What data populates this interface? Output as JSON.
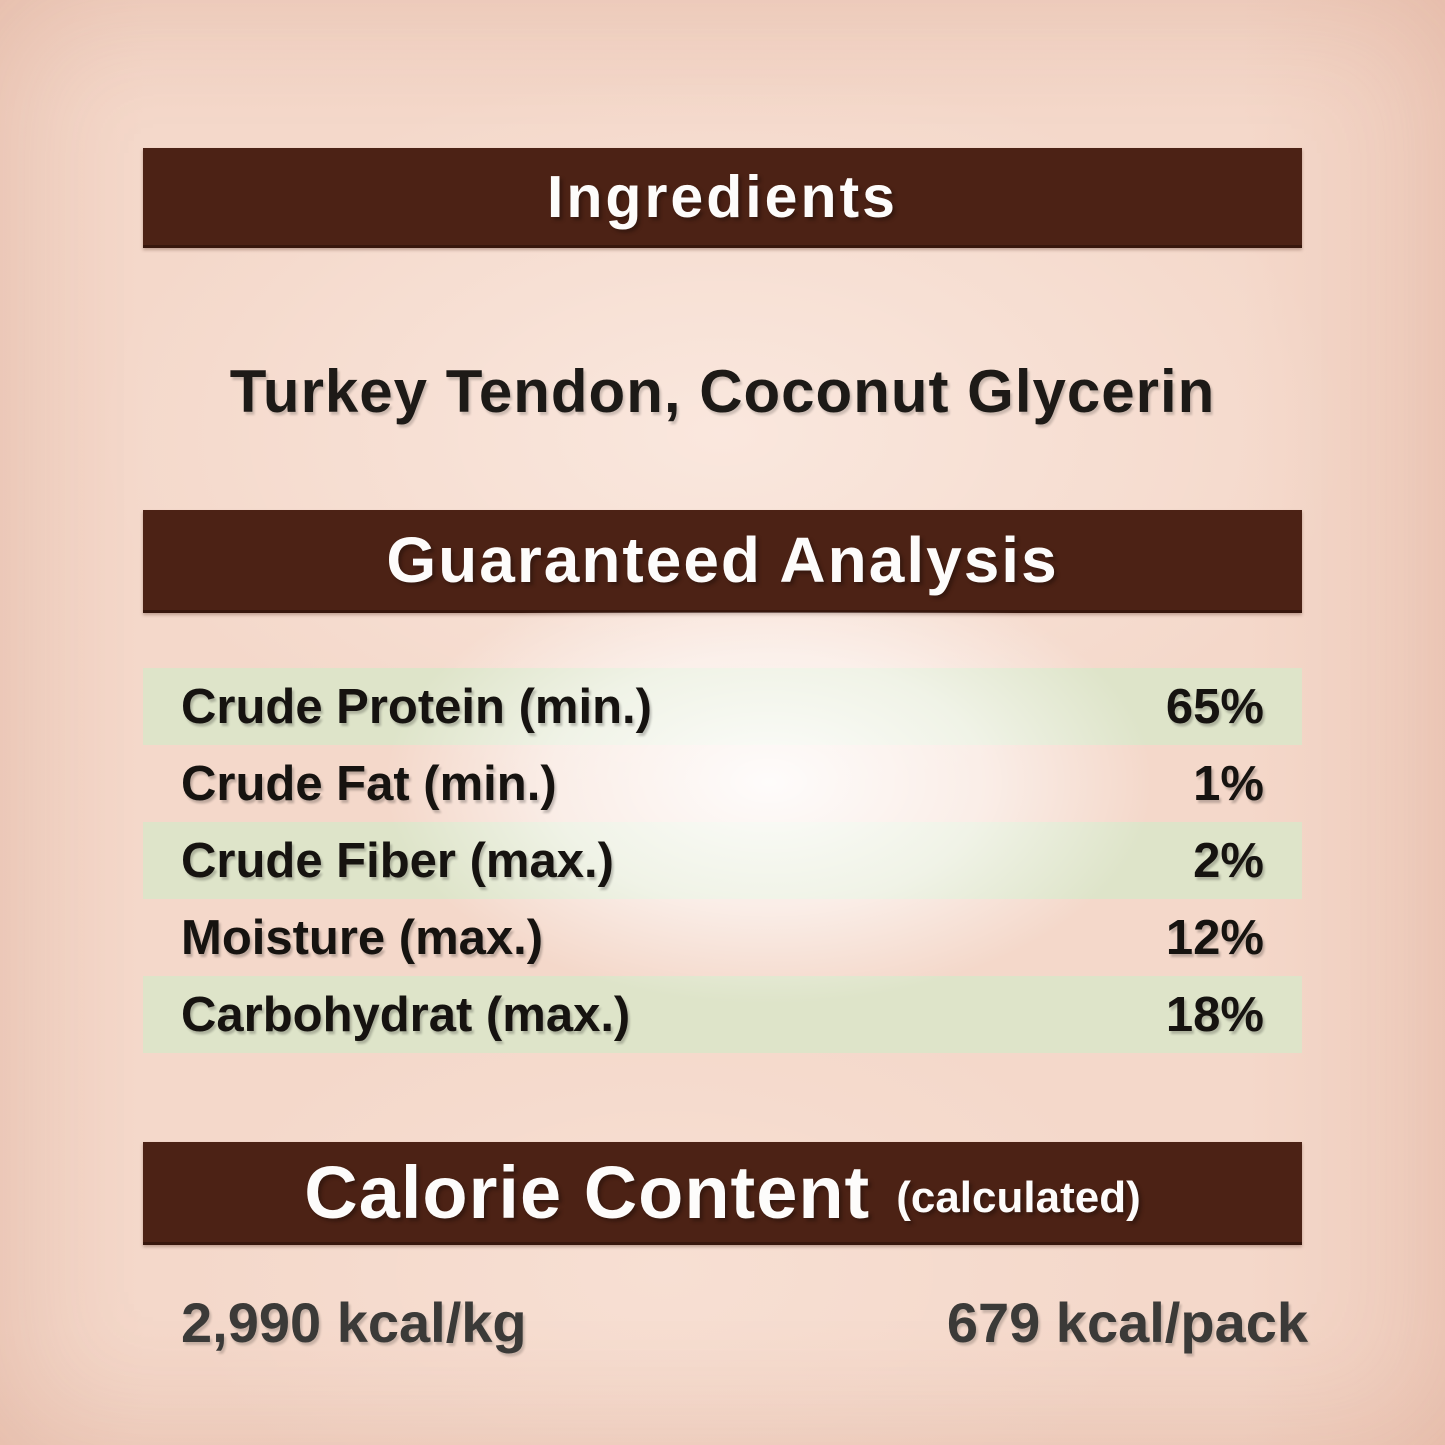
{
  "page": {
    "bg_color": "#f4d8ca",
    "banner_color": "#4c2215",
    "row_green": "#dee4c9"
  },
  "ingredients": {
    "title": "Ingredients",
    "list": "Turkey Tendon, Coconut Glycerin"
  },
  "analysis": {
    "title": "Guaranteed Analysis",
    "rows": [
      {
        "label": "Crude Protein (min.)",
        "value": "65%"
      },
      {
        "label": "Crude Fat (min.)",
        "value": "1%"
      },
      {
        "label": "Crude Fiber (max.)",
        "value": "2%"
      },
      {
        "label": "Moisture (max.)",
        "value": "12%"
      },
      {
        "label": "Carbohydrat (max.)",
        "value": "18%"
      }
    ]
  },
  "calorie": {
    "title": "Calorie Content",
    "subtitle": "(calculated)",
    "per_kg": "2,990 kcal/kg",
    "per_pack": "679 kcal/pack"
  }
}
